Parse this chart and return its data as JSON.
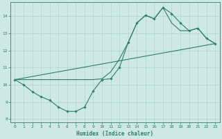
{
  "xlabel": "Humidex (Indice chaleur)",
  "bg_color": "#cde8e5",
  "line_color": "#2e7d6f",
  "grid_color": "#afd4d0",
  "xlim": [
    -0.5,
    23.5
  ],
  "ylim": [
    7.8,
    14.8
  ],
  "xticks": [
    0,
    1,
    2,
    3,
    4,
    5,
    6,
    7,
    8,
    9,
    10,
    11,
    12,
    13,
    14,
    15,
    16,
    17,
    18,
    19,
    20,
    21,
    22,
    23
  ],
  "yticks": [
    8,
    9,
    10,
    11,
    12,
    13,
    14
  ],
  "curve_x": [
    0,
    1,
    2,
    3,
    4,
    5,
    6,
    7,
    8,
    9,
    10,
    11,
    12,
    13,
    14,
    15,
    16,
    17,
    18,
    19,
    20,
    21,
    22,
    23
  ],
  "curve_y": [
    10.3,
    10.0,
    9.6,
    9.3,
    9.1,
    8.7,
    8.45,
    8.45,
    8.7,
    9.65,
    10.3,
    10.35,
    11.0,
    12.45,
    13.6,
    14.05,
    13.85,
    14.5,
    14.15,
    13.6,
    13.15,
    13.3,
    12.7,
    12.4
  ],
  "line2_x": [
    0,
    23
  ],
  "line2_y": [
    10.3,
    12.4
  ],
  "line3_x": [
    0,
    9,
    10,
    11,
    12,
    13,
    14,
    15,
    16,
    17,
    18,
    19,
    20,
    21,
    22,
    23
  ],
  "line3_y": [
    10.3,
    10.3,
    10.35,
    10.75,
    11.5,
    12.45,
    13.6,
    14.05,
    13.85,
    14.5,
    13.6,
    13.15,
    13.15,
    13.3,
    12.7,
    12.4
  ]
}
